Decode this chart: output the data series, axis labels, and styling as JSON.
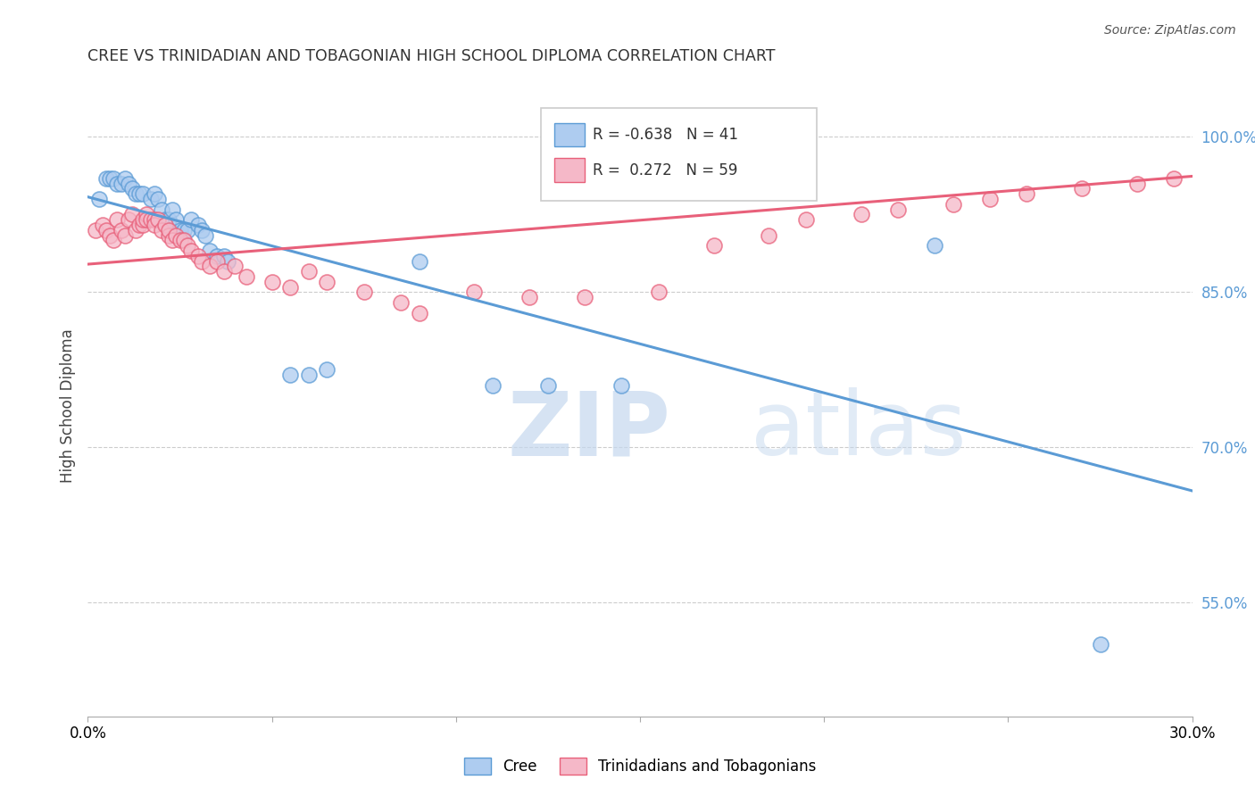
{
  "title": "CREE VS TRINIDADIAN AND TOBAGONIAN HIGH SCHOOL DIPLOMA CORRELATION CHART",
  "source": "Source: ZipAtlas.com",
  "ylabel": "High School Diploma",
  "ytick_labels": [
    "100.0%",
    "85.0%",
    "70.0%",
    "55.0%"
  ],
  "ytick_values": [
    1.0,
    0.85,
    0.7,
    0.55
  ],
  "xmin": 0.0,
  "xmax": 0.3,
  "ymin": 0.44,
  "ymax": 1.04,
  "legend_blue_r": "-0.638",
  "legend_blue_n": "41",
  "legend_pink_r": "0.272",
  "legend_pink_n": "59",
  "legend_label_blue": "Cree",
  "legend_label_pink": "Trinidadians and Tobagonians",
  "blue_color": "#aeccf0",
  "pink_color": "#f5b8c8",
  "line_blue_color": "#5b9bd5",
  "line_pink_color": "#e8607a",
  "watermark_zip": "ZIP",
  "watermark_atlas": "atlas",
  "blue_scatter_x": [
    0.003,
    0.005,
    0.006,
    0.007,
    0.008,
    0.009,
    0.01,
    0.011,
    0.012,
    0.013,
    0.014,
    0.015,
    0.016,
    0.017,
    0.018,
    0.019,
    0.02,
    0.021,
    0.022,
    0.023,
    0.024,
    0.025,
    0.026,
    0.027,
    0.028,
    0.03,
    0.031,
    0.032,
    0.033,
    0.035,
    0.037,
    0.038,
    0.055,
    0.06,
    0.065,
    0.09,
    0.11,
    0.125,
    0.145,
    0.23,
    0.275
  ],
  "blue_scatter_y": [
    0.94,
    0.96,
    0.96,
    0.96,
    0.955,
    0.955,
    0.96,
    0.955,
    0.95,
    0.945,
    0.945,
    0.945,
    0.92,
    0.94,
    0.945,
    0.94,
    0.93,
    0.92,
    0.92,
    0.93,
    0.92,
    0.91,
    0.91,
    0.91,
    0.92,
    0.915,
    0.91,
    0.905,
    0.89,
    0.885,
    0.885,
    0.88,
    0.77,
    0.77,
    0.775,
    0.88,
    0.76,
    0.76,
    0.76,
    0.895,
    0.51
  ],
  "pink_scatter_x": [
    0.002,
    0.004,
    0.005,
    0.006,
    0.007,
    0.008,
    0.009,
    0.01,
    0.011,
    0.012,
    0.013,
    0.014,
    0.015,
    0.015,
    0.016,
    0.016,
    0.017,
    0.018,
    0.018,
    0.019,
    0.02,
    0.021,
    0.022,
    0.022,
    0.023,
    0.024,
    0.025,
    0.026,
    0.027,
    0.028,
    0.03,
    0.031,
    0.033,
    0.035,
    0.037,
    0.04,
    0.043,
    0.05,
    0.055,
    0.06,
    0.065,
    0.075,
    0.085,
    0.09,
    0.105,
    0.12,
    0.135,
    0.155,
    0.17,
    0.185,
    0.195,
    0.21,
    0.22,
    0.235,
    0.245,
    0.255,
    0.27,
    0.285,
    0.295
  ],
  "pink_scatter_y": [
    0.91,
    0.915,
    0.91,
    0.905,
    0.9,
    0.92,
    0.91,
    0.905,
    0.92,
    0.925,
    0.91,
    0.915,
    0.915,
    0.92,
    0.925,
    0.92,
    0.92,
    0.92,
    0.915,
    0.92,
    0.91,
    0.915,
    0.905,
    0.91,
    0.9,
    0.905,
    0.9,
    0.9,
    0.895,
    0.89,
    0.885,
    0.88,
    0.875,
    0.88,
    0.87,
    0.875,
    0.865,
    0.86,
    0.855,
    0.87,
    0.86,
    0.85,
    0.84,
    0.83,
    0.85,
    0.845,
    0.845,
    0.85,
    0.895,
    0.905,
    0.92,
    0.925,
    0.93,
    0.935,
    0.94,
    0.945,
    0.95,
    0.955,
    0.96
  ],
  "blue_line_x0": 0.0,
  "blue_line_y0": 0.942,
  "blue_line_x1": 0.3,
  "blue_line_y1": 0.658,
  "pink_line_x0": 0.0,
  "pink_line_y0": 0.877,
  "pink_line_x1": 0.3,
  "pink_line_y1": 0.962
}
